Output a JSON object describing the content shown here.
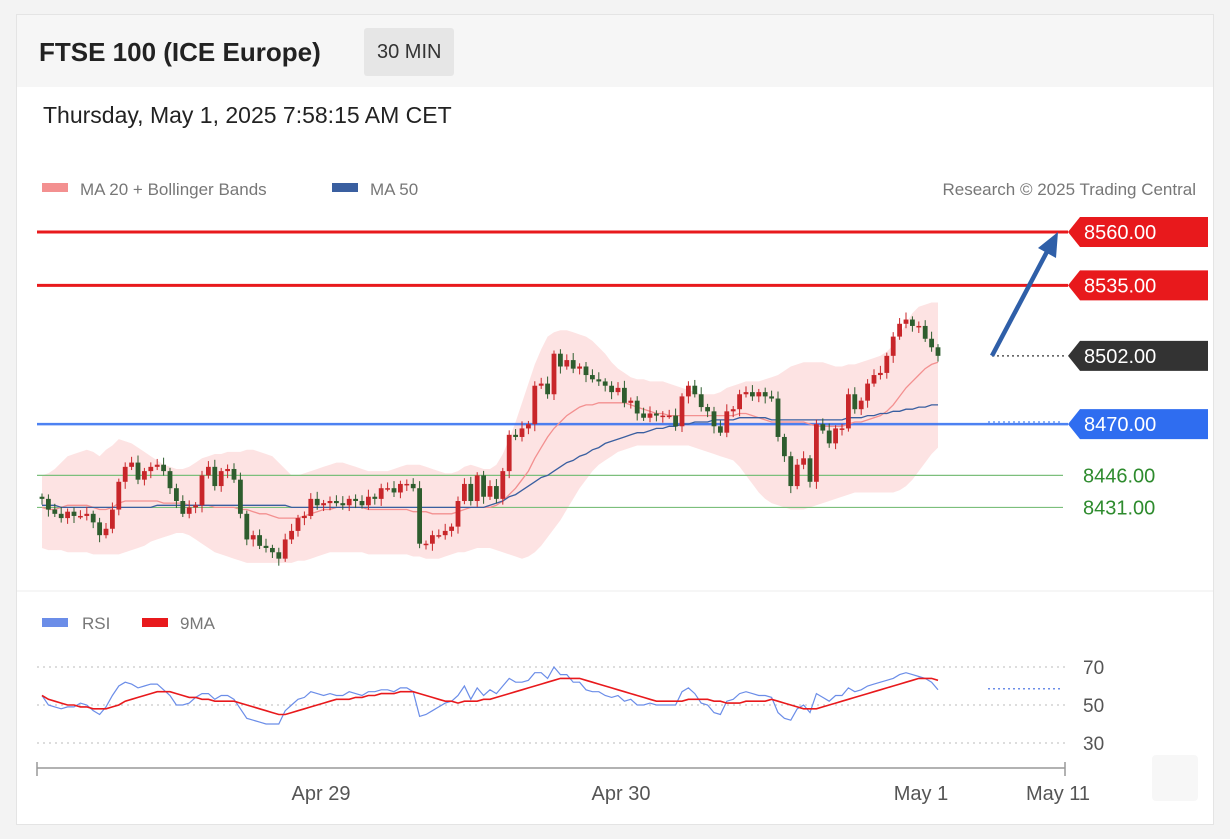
{
  "header": {
    "title": "FTSE 100 (ICE Europe)",
    "interval": "30 MIN"
  },
  "timestamp": "Thursday, May 1, 2025 7:58:15 AM CET",
  "legend": {
    "ma20": "MA 20 + Bollinger Bands",
    "ma50": "MA 50",
    "credit": "Research © 2025 Trading Central",
    "rsi": "RSI",
    "rsi_ma": "9MA"
  },
  "colors": {
    "resistance": "#e8191c",
    "current": "#333333",
    "ma50_support": "#2f6df0",
    "support": "#2e8b2e",
    "bullish": "#c8262a",
    "bearish": "#2e5d2e",
    "bollinger_fill": "#fde3e3",
    "ma20": "#f39090",
    "ma50": "#3a5fa0",
    "rsi": "#6b8de8",
    "rsi_ma": "#e8191c",
    "arrow": "#2f5fa8"
  },
  "chart_data": [
    {
      "type": "candlestick",
      "y_range": [
        8405,
        8575
      ],
      "x_ticks": [
        "Apr 29",
        "Apr 30",
        "May 1",
        "May 11"
      ],
      "levels": [
        {
          "value": 8560,
          "label": "8560.00",
          "kind": "resistance"
        },
        {
          "value": 8535,
          "label": "8535.00",
          "kind": "resistance"
        },
        {
          "value": 8502,
          "label": "8502.00",
          "kind": "current"
        },
        {
          "value": 8470,
          "label": "8470.00",
          "kind": "ma50_support"
        },
        {
          "value": 8446,
          "label": "8446.00",
          "kind": "support"
        },
        {
          "value": 8431,
          "label": "8431.00",
          "kind": "support"
        }
      ],
      "target_arrow": {
        "from": 8502,
        "to": 8560
      },
      "close": [
        8435,
        8430,
        8428,
        8426,
        8429,
        8427,
        8427,
        8428,
        8424,
        8418,
        8421,
        8430,
        8443,
        8450,
        8452,
        8444,
        8448,
        8450,
        8451,
        8448,
        8440,
        8434,
        8428,
        8431,
        8432,
        8446,
        8450,
        8441,
        8448,
        8449,
        8444,
        8428,
        8416,
        8418,
        8413,
        8412,
        8410,
        8407,
        8416,
        8420,
        8426,
        8427,
        8435,
        8432,
        8433,
        8434,
        8433,
        8432,
        8435,
        8434,
        8432,
        8436,
        8435,
        8440,
        8440,
        8438,
        8442,
        8442,
        8440,
        8414,
        8414,
        8418,
        8418,
        8420,
        8422,
        8434,
        8442,
        8434,
        8446,
        8436,
        8441,
        8435,
        8448,
        8465,
        8464,
        8468,
        8470,
        8488,
        8489,
        8484,
        8503,
        8497,
        8500,
        8496,
        8497,
        8493,
        8491,
        8490,
        8488,
        8485,
        8487,
        8480,
        8481,
        8475,
        8473,
        8475,
        8474,
        8474,
        8474,
        8469,
        8483,
        8488,
        8484,
        8478,
        8476,
        8469,
        8466,
        8476,
        8477,
        8484,
        8485,
        8483,
        8485,
        8483,
        8482,
        8464,
        8455,
        8441,
        8451,
        8454,
        8443,
        8470,
        8467,
        8461,
        8468,
        8468,
        8484,
        8477,
        8481,
        8489,
        8493,
        8494,
        8502,
        8511,
        8517,
        8519,
        8516,
        8516,
        8510,
        8506,
        8502
      ],
      "bollinger_upper": [
        8446,
        8447,
        8449,
        8452,
        8455,
        8456,
        8457,
        8458,
        8457,
        8455,
        8458,
        8460,
        8463,
        8462,
        8461,
        8459,
        8457,
        8455,
        8453,
        8451,
        8450,
        8449,
        8449,
        8450,
        8452,
        8454,
        8455,
        8456,
        8456,
        8457,
        8457,
        8457,
        8458,
        8458,
        8457,
        8456,
        8455,
        8452,
        8449,
        8446,
        8446,
        8447,
        8448,
        8449,
        8450,
        8451,
        8452,
        8452,
        8451,
        8450,
        8449,
        8448,
        8448,
        8448,
        8448,
        8449,
        8450,
        8451,
        8451,
        8451,
        8450,
        8449,
        8448,
        8447,
        8447,
        8448,
        8450,
        8451,
        8450,
        8449,
        8449,
        8451,
        8456,
        8463,
        8471,
        8480,
        8489,
        8498,
        8505,
        8511,
        8513,
        8514,
        8514,
        8513,
        8512,
        8511,
        8509,
        8506,
        8503,
        8499,
        8496,
        8494,
        8492,
        8491,
        8491,
        8490,
        8490,
        8490,
        8489,
        8488,
        8487,
        8486,
        8485,
        8484,
        8484,
        8484,
        8485,
        8487,
        8488,
        8489,
        8490,
        8490,
        8490,
        8491,
        8492,
        8493,
        8495,
        8497,
        8498,
        8499,
        8499,
        8499,
        8499,
        8498,
        8497,
        8497,
        8498,
        8498,
        8499,
        8500,
        8501,
        8502,
        8504,
        8507,
        8512,
        8517,
        8522,
        8525,
        8526,
        8527,
        8527
      ],
      "bollinger_lower": [
        8412,
        8411,
        8411,
        8411,
        8410,
        8410,
        8410,
        8410,
        8409,
        8409,
        8409,
        8409,
        8409,
        8410,
        8411,
        8412,
        8413,
        8415,
        8416,
        8417,
        8418,
        8419,
        8419,
        8418,
        8416,
        8414,
        8412,
        8410,
        8409,
        8408,
        8407,
        8406,
        8405,
        8405,
        8405,
        8405,
        8405,
        8405,
        8405,
        8405,
        8406,
        8406,
        8407,
        8408,
        8409,
        8410,
        8410,
        8410,
        8410,
        8410,
        8410,
        8409,
        8409,
        8409,
        8409,
        8409,
        8409,
        8409,
        8408,
        8408,
        8407,
        8407,
        8407,
        8408,
        8409,
        8410,
        8410,
        8411,
        8412,
        8412,
        8412,
        8411,
        8410,
        8409,
        8408,
        8407,
        8408,
        8410,
        8413,
        8417,
        8421,
        8425,
        8430,
        8435,
        8440,
        8444,
        8448,
        8451,
        8453,
        8455,
        8457,
        8458,
        8459,
        8460,
        8460,
        8460,
        8460,
        8460,
        8460,
        8460,
        8460,
        8460,
        8459,
        8458,
        8457,
        8456,
        8455,
        8454,
        8453,
        8450,
        8446,
        8442,
        8438,
        8435,
        8433,
        8432,
        8431,
        8430,
        8430,
        8430,
        8431,
        8432,
        8433,
        8434,
        8435,
        8436,
        8437,
        8438,
        8438,
        8438,
        8438,
        8438,
        8438,
        8438,
        8439,
        8441,
        8444,
        8448,
        8452,
        8456,
        8459
      ],
      "ma20": [
        8431,
        8430,
        8430,
        8431,
        8432,
        8432,
        8432,
        8432,
        8431,
        8430,
        8430,
        8431,
        8433,
        8434,
        8434,
        8434,
        8434,
        8434,
        8434,
        8433,
        8433,
        8433,
        8433,
        8432,
        8432,
        8432,
        8432,
        8431,
        8431,
        8431,
        8431,
        8430,
        8430,
        8429,
        8428,
        8428,
        8427,
        8426,
        8426,
        8426,
        8426,
        8427,
        8428,
        8429,
        8430,
        8430,
        8431,
        8431,
        8431,
        8431,
        8431,
        8430,
        8430,
        8430,
        8430,
        8430,
        8430,
        8430,
        8429,
        8429,
        8429,
        8428,
        8428,
        8428,
        8428,
        8429,
        8430,
        8431,
        8431,
        8431,
        8431,
        8432,
        8434,
        8437,
        8440,
        8444,
        8448,
        8454,
        8459,
        8464,
        8468,
        8471,
        8474,
        8476,
        8478,
        8479,
        8479,
        8480,
        8480,
        8480,
        8480,
        8480,
        8479,
        8478,
        8477,
        8476,
        8475,
        8475,
        8474,
        8474,
        8474,
        8474,
        8474,
        8474,
        8474,
        8474,
        8474,
        8474,
        8474,
        8475,
        8475,
        8474,
        8473,
        8472,
        8471,
        8471,
        8471,
        8471,
        8471,
        8471,
        8470,
        8469,
        8469,
        8469,
        8469,
        8469,
        8470,
        8471,
        8471,
        8472,
        8473,
        8474,
        8476,
        8479,
        8483,
        8487,
        8490,
        8493,
        8496,
        8498,
        8499
      ],
      "ma50": [
        8432,
        8432,
        8432,
        8431,
        8431,
        8431,
        8431,
        8431,
        8431,
        8431,
        8431,
        8431,
        8431,
        8431,
        8431,
        8431,
        8431,
        8431,
        8432,
        8432,
        8432,
        8432,
        8432,
        8432,
        8432,
        8432,
        8432,
        8432,
        8432,
        8432,
        8432,
        8432,
        8432,
        8432,
        8432,
        8432,
        8432,
        8432,
        8432,
        8431,
        8431,
        8431,
        8431,
        8431,
        8431,
        8431,
        8431,
        8431,
        8431,
        8431,
        8431,
        8431,
        8431,
        8431,
        8431,
        8431,
        8431,
        8431,
        8431,
        8431,
        8431,
        8431,
        8431,
        8431,
        8431,
        8431,
        8431,
        8431,
        8431,
        8431,
        8432,
        8433,
        8434,
        8436,
        8437,
        8439,
        8441,
        8443,
        8445,
        8446,
        8448,
        8450,
        8452,
        8453,
        8455,
        8456,
        8458,
        8459,
        8461,
        8462,
        8463,
        8464,
        8465,
        8466,
        8466,
        8467,
        8468,
        8468,
        8469,
        8469,
        8470,
        8470,
        8471,
        8471,
        8471,
        8472,
        8472,
        8472,
        8472,
        8473,
        8473,
        8473,
        8473,
        8473,
        8472,
        8472,
        8472,
        8472,
        8472,
        8472,
        8472,
        8472,
        8472,
        8472,
        8472,
        8472,
        8473,
        8473,
        8473,
        8474,
        8474,
        8475,
        8475,
        8476,
        8476,
        8477,
        8477,
        8478,
        8478,
        8479,
        8479
      ]
    },
    {
      "type": "line",
      "y_range": [
        20,
        80
      ],
      "y_ticks": [
        70,
        50,
        30
      ],
      "series": [
        {
          "name": "RSI",
          "values": [
            55,
            50,
            49,
            48,
            49,
            49,
            51,
            50,
            47,
            45,
            49,
            55,
            60,
            62,
            61,
            59,
            60,
            61,
            61,
            58,
            55,
            50,
            50,
            51,
            54,
            56,
            56,
            53,
            55,
            55,
            53,
            48,
            43,
            42,
            41,
            40,
            40,
            40,
            47,
            50,
            53,
            54,
            57,
            56,
            55,
            56,
            55,
            55,
            57,
            56,
            55,
            57,
            57,
            58,
            58,
            57,
            59,
            59,
            57,
            44,
            45,
            47,
            49,
            51,
            52,
            55,
            60,
            53,
            59,
            55,
            58,
            56,
            60,
            64,
            62,
            62,
            63,
            67,
            67,
            64,
            70,
            66,
            66,
            62,
            62,
            58,
            57,
            57,
            55,
            54,
            55,
            52,
            53,
            50,
            50,
            51,
            50,
            50,
            50,
            50,
            57,
            59,
            56,
            51,
            50,
            46,
            45,
            52,
            53,
            56,
            57,
            56,
            55,
            55,
            54,
            46,
            43,
            42,
            48,
            50,
            46,
            56,
            54,
            52,
            55,
            55,
            59,
            57,
            58,
            60,
            61,
            62,
            63,
            64,
            66,
            67,
            66,
            65,
            64,
            62,
            58
          ]
        },
        {
          "name": "9MA",
          "values": [
            55,
            53,
            52,
            51,
            50,
            50,
            49,
            49,
            48,
            48,
            48,
            49,
            50,
            52,
            53,
            54,
            55,
            56,
            57,
            57,
            57,
            56,
            55,
            54,
            54,
            53,
            53,
            52,
            52,
            52,
            52,
            51,
            50,
            49,
            48,
            47,
            46,
            45,
            45,
            46,
            47,
            48,
            49,
            50,
            51,
            52,
            53,
            53,
            53,
            54,
            54,
            55,
            55,
            56,
            56,
            56,
            57,
            57,
            57,
            56,
            55,
            54,
            53,
            52,
            52,
            51,
            52,
            52,
            52,
            53,
            53,
            54,
            55,
            56,
            57,
            58,
            59,
            60,
            61,
            62,
            63,
            64,
            64,
            64,
            64,
            63,
            62,
            61,
            60,
            59,
            58,
            57,
            56,
            55,
            54,
            53,
            52,
            52,
            52,
            52,
            52,
            53,
            53,
            53,
            53,
            52,
            52,
            51,
            51,
            51,
            52,
            52,
            52,
            52,
            53,
            52,
            51,
            50,
            49,
            48,
            48,
            48,
            49,
            50,
            51,
            52,
            53,
            54,
            55,
            56,
            57,
            58,
            59,
            60,
            61,
            62,
            63,
            64,
            64,
            64,
            63
          ]
        }
      ]
    }
  ]
}
